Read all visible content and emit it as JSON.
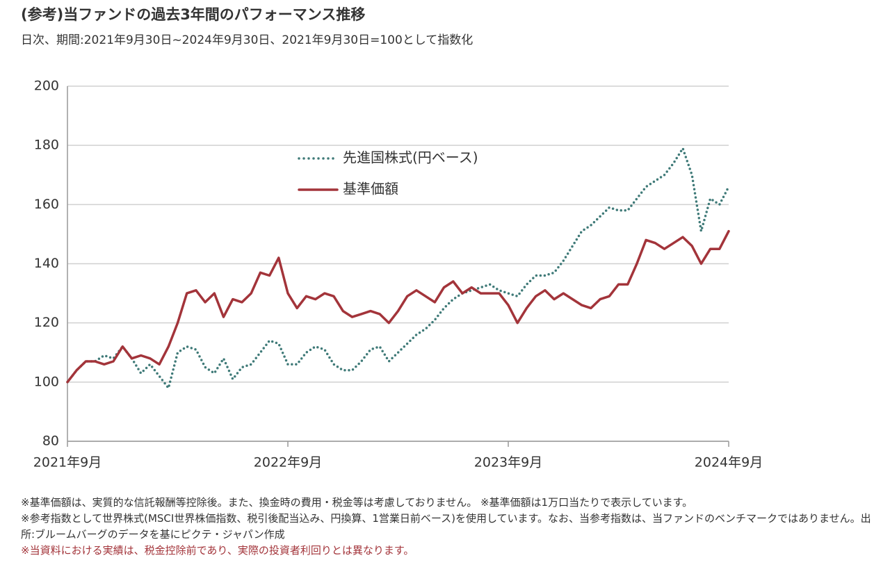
{
  "chart_data": {
    "type": "line",
    "title": "(参考)当ファンドの過去3年間のパフォーマンス推移",
    "subtitle": "日次、期間:2021年9月30日~2024年9月30日、2021年9月30日=100として指数化",
    "categories": [
      "2021年9月",
      null,
      null,
      null,
      null,
      null,
      null,
      null,
      null,
      null,
      null,
      null,
      null,
      null,
      null,
      null,
      null,
      null,
      null,
      null,
      null,
      null,
      null,
      null,
      "2022年9月",
      null,
      null,
      null,
      null,
      null,
      null,
      null,
      null,
      null,
      null,
      null,
      null,
      null,
      null,
      null,
      null,
      null,
      null,
      null,
      null,
      null,
      null,
      null,
      "2023年9月",
      null,
      null,
      null,
      null,
      null,
      null,
      null,
      null,
      null,
      null,
      null,
      null,
      null,
      null,
      null,
      null,
      null,
      null,
      null,
      null,
      null,
      null,
      null,
      "2024年9月"
    ],
    "series": [
      {
        "name": "先進国株式(円ベース)",
        "color": "#3f7a78",
        "style": "dotted",
        "values": [
          100,
          104,
          107,
          107,
          109,
          108,
          112,
          108,
          103,
          106,
          102,
          98,
          110,
          112,
          111,
          105,
          103,
          108,
          101,
          105,
          106,
          110,
          114,
          113,
          106,
          106,
          110,
          112,
          111,
          106,
          104,
          104,
          107,
          111,
          112,
          107,
          110,
          113,
          116,
          118,
          121,
          125,
          128,
          130,
          131,
          132,
          133,
          131,
          130,
          129,
          133,
          136,
          136,
          137,
          141,
          146,
          151,
          153,
          156,
          159,
          158,
          158,
          162,
          166,
          168,
          170,
          174,
          179,
          170,
          151,
          162,
          160,
          166
        ]
      },
      {
        "name": "基準価額",
        "color": "#a3343a",
        "style": "solid",
        "values": [
          100,
          104,
          107,
          107,
          106,
          107,
          112,
          108,
          109,
          108,
          106,
          112,
          120,
          130,
          131,
          127,
          130,
          122,
          128,
          127,
          130,
          137,
          136,
          142,
          130,
          125,
          129,
          128,
          130,
          129,
          124,
          122,
          123,
          124,
          123,
          120,
          124,
          129,
          131,
          129,
          127,
          132,
          134,
          130,
          132,
          130,
          130,
          130,
          126,
          120,
          125,
          129,
          131,
          128,
          130,
          128,
          126,
          125,
          128,
          129,
          133,
          133,
          140,
          148,
          147,
          145,
          147,
          149,
          146,
          140,
          145,
          145,
          151
        ]
      }
    ],
    "ylim": [
      80,
      200
    ],
    "yticks": [
      80,
      100,
      120,
      140,
      160,
      180,
      200
    ],
    "grid": true,
    "notes": [
      "※基準価額は、実質的な信託報酬等控除後。また、換金時の費用・税金等は考慮しておりません。 ※基準価額は1万口当たりで表示しています。",
      "※参考指数として世界株式(MSCI世界株価指数、税引後配当込み、円換算、1営業日前ベース)を使用しています。なお、当参考指数は、当ファンドのベンチマークではありません。出所:ブルームバーグのデータを基にピクテ・ジャパン作成",
      "※当資料における実績は、税金控除前であり、実際の投資者利回りとは異なります。"
    ]
  }
}
